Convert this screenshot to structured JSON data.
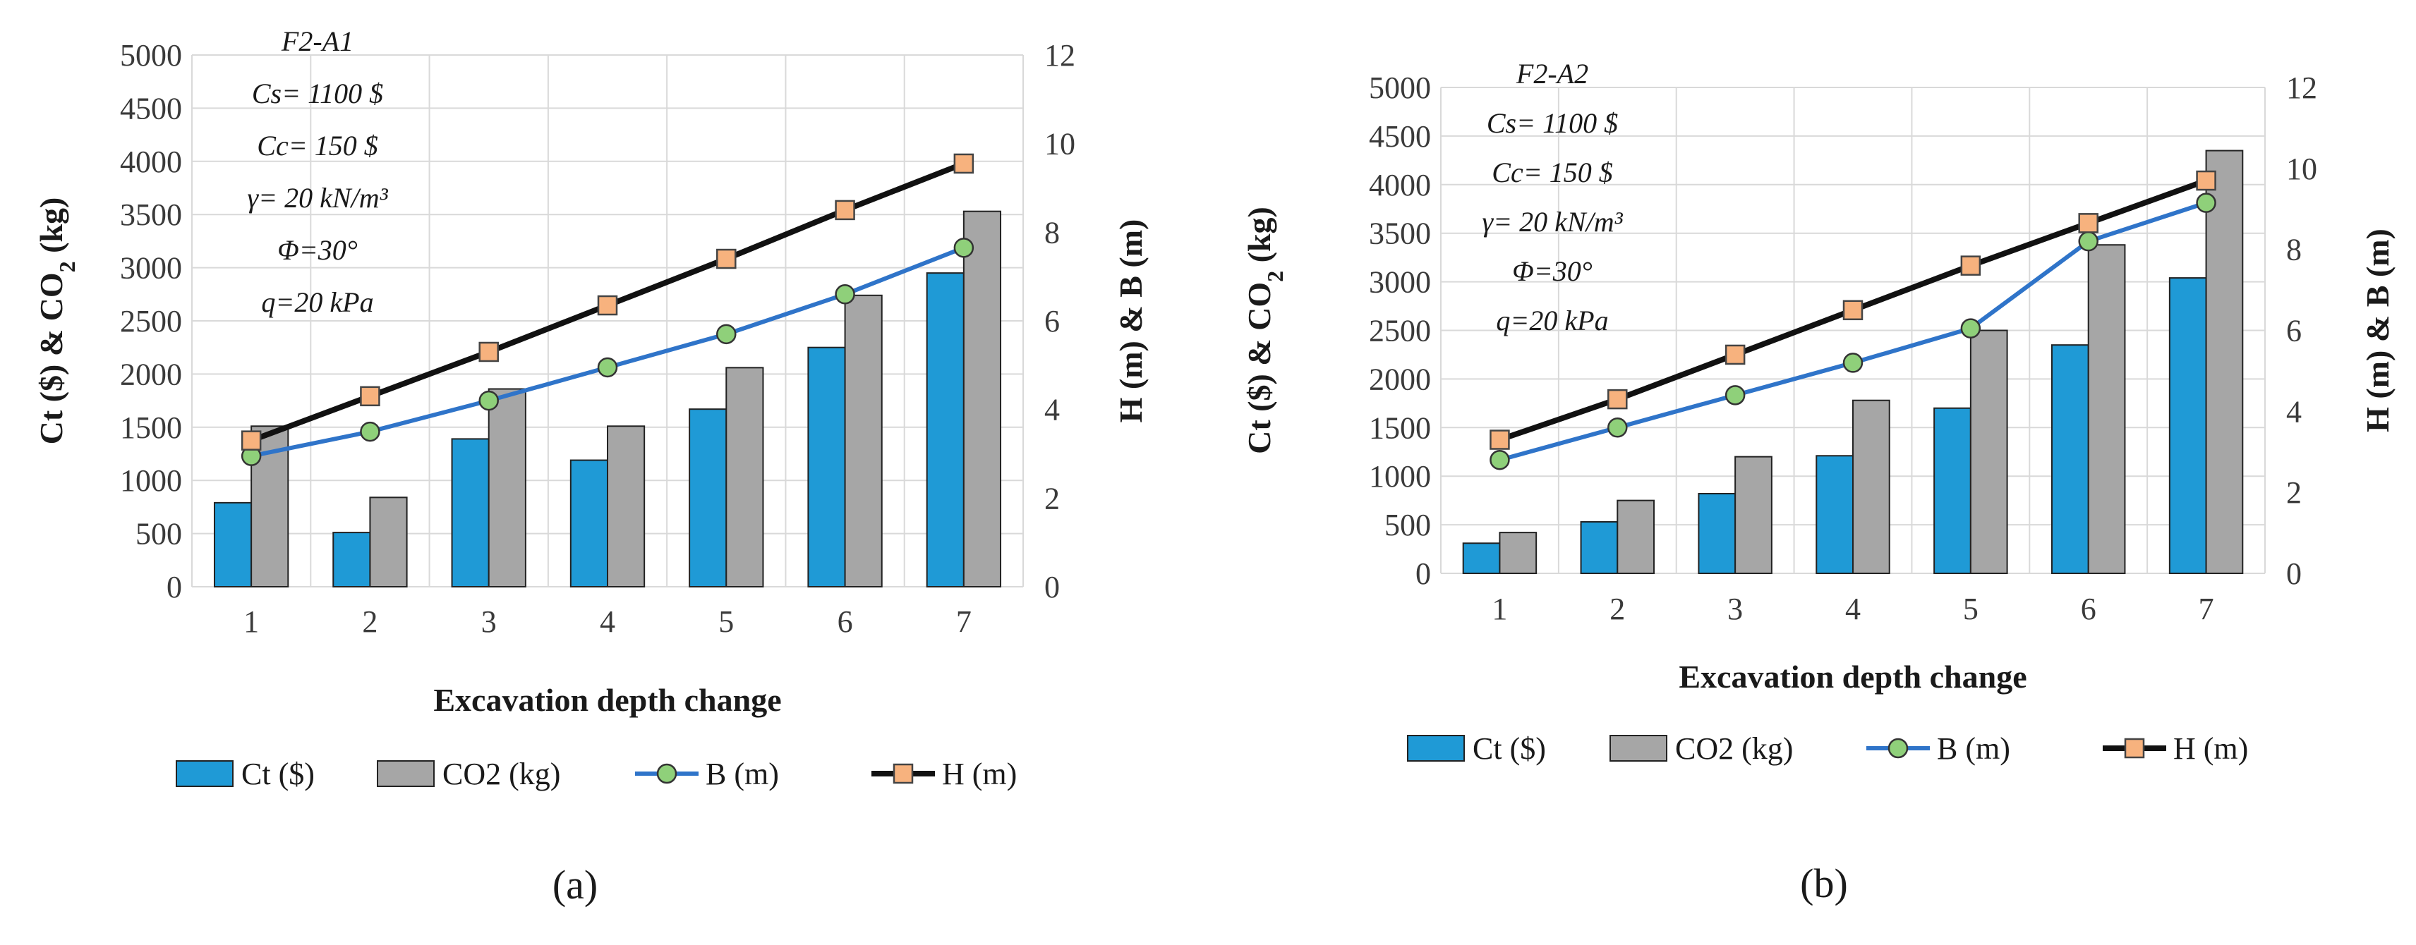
{
  "colors": {
    "ct": "#1f9ad6",
    "co2": "#a6a6a6",
    "b_line": "#2f74c9",
    "b_marker": "#8fd07a",
    "h_line": "#111111",
    "h_marker": "#f7b27e",
    "grid": "#d9d9d9"
  },
  "legend": {
    "ct": "Ct ($)",
    "co2": "CO2 (kg)",
    "b": "B (m)",
    "h": "H (m)"
  },
  "chart_data": [
    {
      "type": "bar",
      "panel_label": "(a)",
      "annotations": [
        "F2-A1",
        "Cs= 1100 $",
        "Cc= 150 $",
        "γ= 20 kN/m³",
        "Φ=30°",
        "q=20 kPa"
      ],
      "xlabel": "Excavation depth change",
      "ylabel_left": "Ct ($) & CO",
      "ylabel_left_sub": "2",
      "ylabel_left_unit": " (kg)",
      "ylabel_right": "H (m) & B (m)",
      "categories": [
        "1",
        "2",
        "3",
        "4",
        "5",
        "6",
        "7"
      ],
      "ylim_left": [
        0,
        5000
      ],
      "ylim_right": [
        0,
        12
      ],
      "yticks_left": [
        "0",
        "500",
        "1000",
        "1500",
        "2000",
        "2500",
        "3000",
        "3500",
        "4000",
        "4500",
        "5000"
      ],
      "yticks_right": [
        "0",
        "2",
        "4",
        "6",
        "8",
        "10",
        "12"
      ],
      "series": [
        {
          "name": "Ct ($)",
          "axis": "left",
          "kind": "bar",
          "values": [
            790,
            510,
            1390,
            1190,
            1670,
            2250,
            2950
          ]
        },
        {
          "name": "CO2 (kg)",
          "axis": "left",
          "kind": "bar",
          "values": [
            1510,
            840,
            1860,
            1510,
            2060,
            2740,
            3530
          ]
        },
        {
          "name": "B (m)",
          "axis": "right",
          "kind": "line",
          "values": [
            2.95,
            3.5,
            4.2,
            4.95,
            5.7,
            6.6,
            7.65
          ]
        },
        {
          "name": "H (m)",
          "axis": "right",
          "kind": "line",
          "values": [
            3.3,
            4.3,
            5.3,
            6.35,
            7.4,
            8.5,
            9.55
          ]
        }
      ]
    },
    {
      "type": "bar",
      "panel_label": "(b)",
      "annotations": [
        "F2-A2",
        "Cs= 1100 $",
        "Cc= 150 $",
        "γ= 20 kN/m³",
        "Φ=30°",
        "q=20 kPa"
      ],
      "xlabel": "Excavation depth change",
      "ylabel_left": "Ct ($) & CO",
      "ylabel_left_sub": "2",
      "ylabel_left_unit": " (kg)",
      "ylabel_right": "H (m) & B (m)",
      "categories": [
        "1",
        "2",
        "3",
        "4",
        "5",
        "6",
        "7"
      ],
      "ylim_left": [
        0,
        5000
      ],
      "ylim_right": [
        0,
        12
      ],
      "yticks_left": [
        "0",
        "500",
        "1000",
        "1500",
        "2000",
        "2500",
        "3000",
        "3500",
        "4000",
        "4500",
        "5000"
      ],
      "yticks_right": [
        "0",
        "2",
        "4",
        "6",
        "8",
        "10",
        "12"
      ],
      "series": [
        {
          "name": "Ct ($)",
          "axis": "left",
          "kind": "bar",
          "values": [
            310,
            530,
            820,
            1210,
            1700,
            2350,
            3040
          ]
        },
        {
          "name": "CO2 (kg)",
          "axis": "left",
          "kind": "bar",
          "values": [
            420,
            750,
            1200,
            1780,
            2500,
            3380,
            4350
          ]
        },
        {
          "name": "B (m)",
          "axis": "right",
          "kind": "line",
          "values": [
            2.8,
            3.6,
            4.4,
            5.2,
            6.05,
            8.2,
            9.15
          ]
        },
        {
          "name": "H (m)",
          "axis": "right",
          "kind": "line",
          "values": [
            3.3,
            4.3,
            5.4,
            6.5,
            7.6,
            8.65,
            9.7
          ]
        }
      ]
    }
  ]
}
